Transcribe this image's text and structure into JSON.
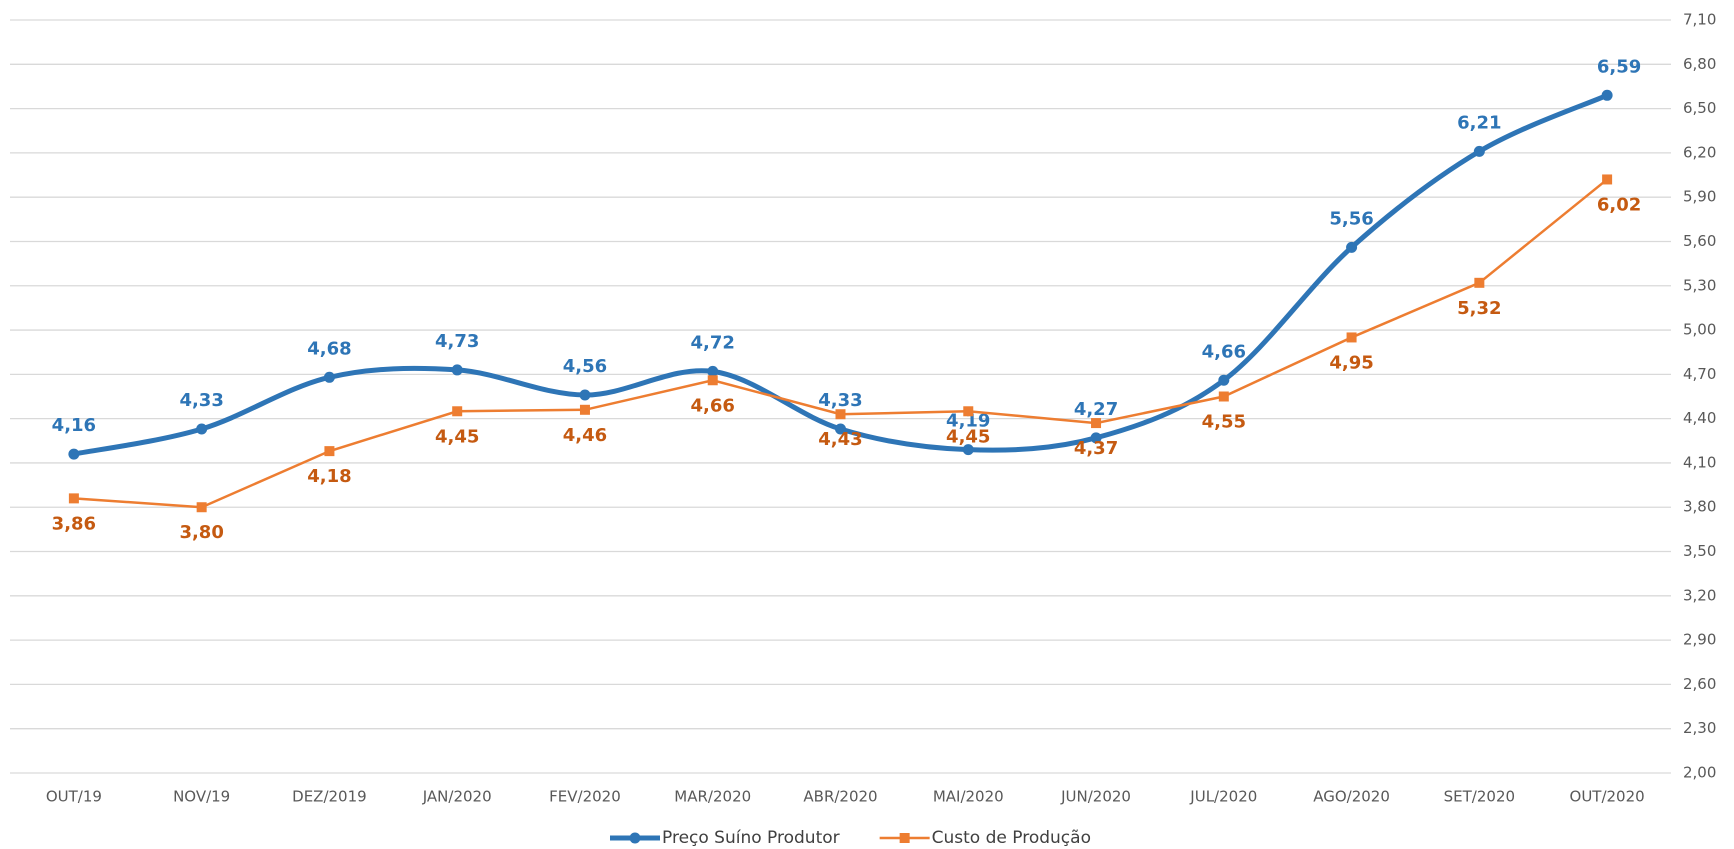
{
  "chart_data": {
    "type": "line",
    "categories": [
      "OUT/19",
      "NOV/19",
      "DEZ/2019",
      "JAN/2020",
      "FEV/2020",
      "MAR/2020",
      "ABR/2020",
      "MAI/2020",
      "JUN/2020",
      "JUL/2020",
      "AGO/2020",
      "SET/2020",
      "OUT/2020"
    ],
    "series": [
      {
        "name": "Preço Suíno Produtor",
        "color": "#2e75b6",
        "smooth": true,
        "marker": "circle",
        "values": [
          4.16,
          4.33,
          4.68,
          4.73,
          4.56,
          4.72,
          4.33,
          4.19,
          4.27,
          4.66,
          5.56,
          6.21,
          6.59
        ],
        "value_labels": [
          "4,16",
          "4,33",
          "4,68",
          "4,73",
          "4,56",
          "4,72",
          "4,33",
          "4,19",
          "4,27",
          "4,66",
          "5,56",
          "6,21",
          "6,59"
        ]
      },
      {
        "name": "Custo de Produção",
        "color": "#ed7d31",
        "smooth": false,
        "marker": "square",
        "values": [
          3.86,
          3.8,
          4.18,
          4.45,
          4.46,
          4.66,
          4.43,
          4.45,
          4.37,
          4.55,
          4.95,
          5.32,
          6.02
        ],
        "value_labels": [
          "3,86",
          "3,80",
          "4,18",
          "4,45",
          "4,46",
          "4,66",
          "4,43",
          "4,45",
          "4,37",
          "4,55",
          "4,95",
          "5,32",
          "6,02"
        ]
      }
    ],
    "ylim": [
      2.0,
      7.1
    ],
    "yticks": [
      {
        "value": 2.0,
        "label": "2,00"
      },
      {
        "value": 2.3,
        "label": "2,30"
      },
      {
        "value": 2.6,
        "label": "2,60"
      },
      {
        "value": 2.9,
        "label": "2,90"
      },
      {
        "value": 3.2,
        "label": "3,20"
      },
      {
        "value": 3.5,
        "label": "3,50"
      },
      {
        "value": 3.8,
        "label": "3,80"
      },
      {
        "value": 4.1,
        "label": "4,10"
      },
      {
        "value": 4.4,
        "label": "4,40"
      },
      {
        "value": 4.7,
        "label": "4,70"
      },
      {
        "value": 5.0,
        "label": "5,00"
      },
      {
        "value": 5.3,
        "label": "5,30"
      },
      {
        "value": 5.6,
        "label": "5,60"
      },
      {
        "value": 5.9,
        "label": "5,90"
      },
      {
        "value": 6.2,
        "label": "6,20"
      },
      {
        "value": 6.5,
        "label": "6,50"
      },
      {
        "value": 6.8,
        "label": "6,80"
      },
      {
        "value": 7.1,
        "label": "7,10"
      }
    ],
    "y_axis_side": "right",
    "grid": true,
    "legend": "bottom"
  }
}
